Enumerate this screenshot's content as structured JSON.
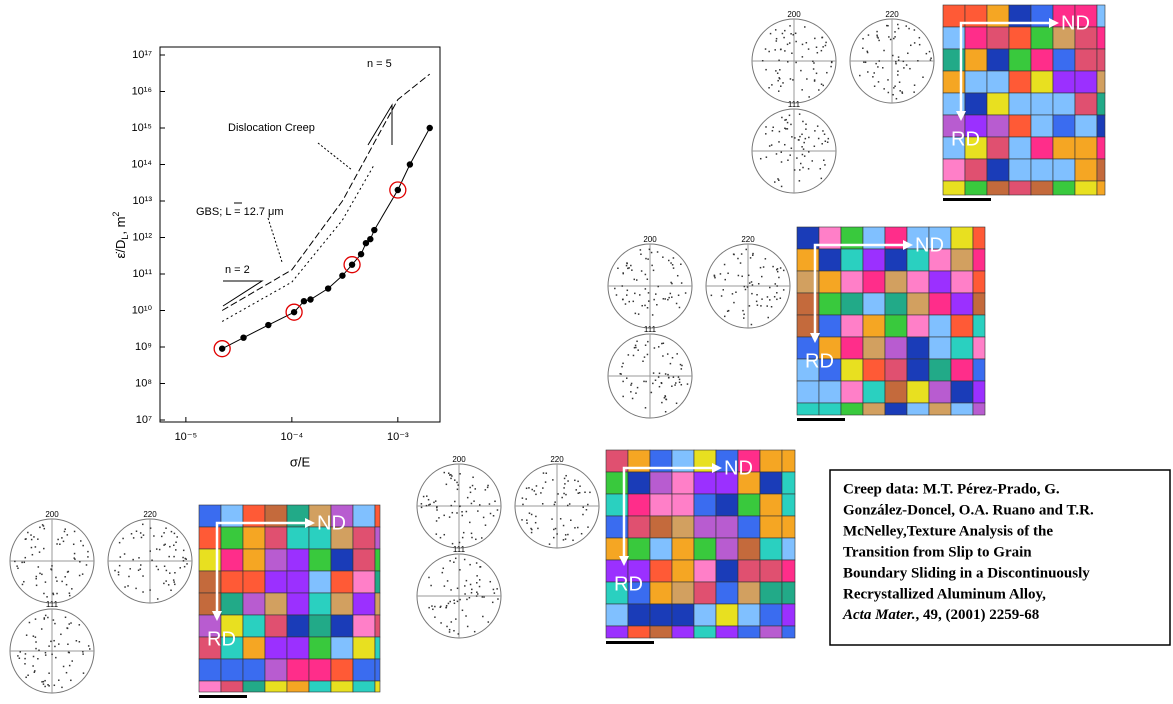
{
  "chart_data": {
    "type": "line",
    "xlabel": "σ/E",
    "ylabel": [
      "ε̇/D",
      "L",
      ", m",
      "2"
    ],
    "xlim": [
      5.7e-06,
      0.0025
    ],
    "ylim": [
      10000000,
      100000000000000000
    ],
    "log_x": true,
    "log_y": true,
    "xticks": [
      {
        "value": 1e-05,
        "label": "10⁻⁵"
      },
      {
        "value": 0.0001,
        "label": "10⁻⁴"
      },
      {
        "value": 0.001,
        "label": "10⁻³"
      }
    ],
    "yticks": [
      {
        "value": 10000000,
        "label": "10⁷"
      },
      {
        "value": 100000000,
        "label": "10⁸"
      },
      {
        "value": 1000000000,
        "label": "10⁹"
      },
      {
        "value": 10000000000,
        "label": "10¹⁰"
      },
      {
        "value": 100000000000,
        "label": "10¹¹"
      },
      {
        "value": 1000000000000,
        "label": "10¹²"
      },
      {
        "value": 10000000000000,
        "label": "10¹³"
      },
      {
        "value": 100000000000000,
        "label": "10¹⁴"
      },
      {
        "value": 1000000000000000,
        "label": "10¹⁵"
      },
      {
        "value": 10000000000000000,
        "label": "10¹⁶"
      },
      {
        "value": 100000000000000000,
        "label": "10¹⁷"
      }
    ],
    "series": [
      {
        "color": "#000000",
        "x": [
          2.2e-05,
          3.5e-05,
          6e-05,
          0.000105,
          0.00013,
          0.00015,
          0.00022,
          0.0003,
          0.00037,
          0.00045,
          0.0005,
          0.00055,
          0.0006,
          0.001,
          0.0013,
          0.002
        ],
        "values": [
          900000000,
          1800000000,
          4000000000,
          9000000000,
          18000000000,
          20000000000,
          40000000000,
          90000000000,
          180000000000,
          350000000000,
          700000000000,
          900000000000,
          1600000000000,
          20000000000000,
          100000000000000,
          1000000000000000
        ]
      }
    ],
    "highlight": {
      "color": "#e00000",
      "x": [
        2.2e-05,
        0.000105,
        0.00037,
        0.001
      ],
      "values": [
        900000000,
        9000000000,
        180000000000,
        20000000000000
      ]
    },
    "curves": [
      {
        "x": [
          2.2e-05,
          0.0001,
          0.0003,
          0.001,
          0.002
        ],
        "values": [
          10000000000,
          130000000000,
          10000000000000,
          6000000000000000,
          30000000000000000
        ]
      },
      {
        "x": [
          2.2e-05,
          0.0001,
          0.0003,
          0.0006
        ],
        "values": [
          5000000000,
          60000000000,
          3000000000000,
          100000000000000
        ]
      }
    ],
    "annotations": [
      "Dislocation Creep",
      "GBS; L = 12.7 μm",
      "n = 5",
      "n = 2"
    ]
  },
  "panels": [
    {
      "poles": [
        "200",
        "220",
        "111"
      ],
      "nd": "ND",
      "rd": "RD"
    },
    {
      "poles": [
        "200",
        "220",
        "111"
      ],
      "nd": "ND",
      "rd": "RD"
    },
    {
      "poles": [
        "200",
        "220",
        "111"
      ],
      "nd": "ND",
      "rd": "RD"
    },
    {
      "poles": [
        "200",
        "220",
        "111"
      ],
      "nd": "ND",
      "rd": "RD"
    }
  ],
  "citation": {
    "lines": [
      "Creep data: M.T. Pérez-Prado, G.",
      "González-Doncel, O.A. Ruano and T.R.",
      "McNelley,Texture Analysis of the",
      "Transition from Slip to Grain",
      "Boundary Sliding in a Discontinuously",
      "Recrystallized Aluminum Alloy,"
    ],
    "journal": "Acta Mater.",
    "ref": ", 49, (2001) 2259-68"
  }
}
